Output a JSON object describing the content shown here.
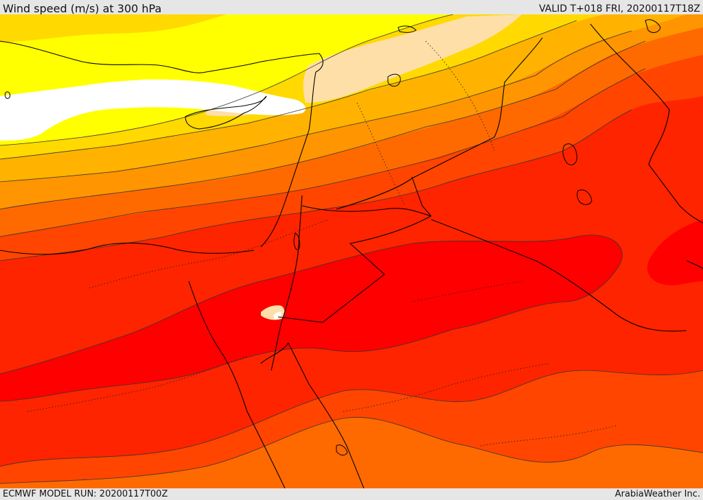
{
  "header": {
    "title": "Wind speed (m/s) at 300 hPa",
    "valid_time": "VALID T+018 FRI, 20200117T18Z"
  },
  "footer": {
    "model_run": "ECMWF MODEL RUN: 20200117T00Z",
    "credit": "ArabiaWeather Inc."
  },
  "map": {
    "field": "wind speed",
    "level_hpa": 300,
    "units": "m/s",
    "colors": {
      "weakest": "#ffffff",
      "peach": "#ffdfa8",
      "yellow": "#ffff00",
      "gold": "#ffd900",
      "orange_light": "#ffb300",
      "orange": "#ff9500",
      "orange_dark": "#ff6a00",
      "red_orange": "#ff4500",
      "red": "#ff2400",
      "strongest": "#ff0000",
      "contour_line": "#333333",
      "coastline": "#000000"
    }
  }
}
